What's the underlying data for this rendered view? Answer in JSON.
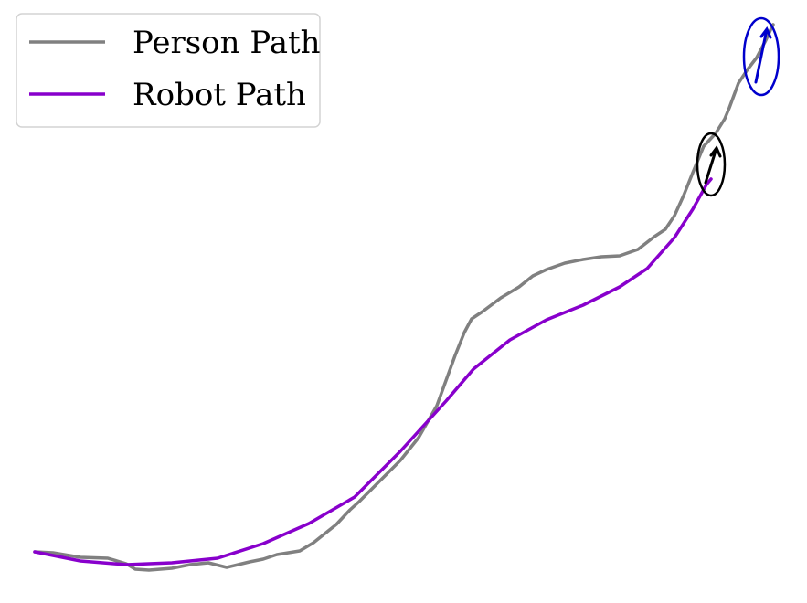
{
  "chart_data": {
    "type": "line",
    "title": "",
    "xlabel": "",
    "ylabel": "",
    "axes_visible": false,
    "grid": false,
    "legend": {
      "placement": "top-left",
      "entries": [
        {
          "label": "Person Path",
          "color": "#808080"
        },
        {
          "label": "Robot Path",
          "color": "#8800cc"
        }
      ]
    },
    "series": [
      {
        "name": "Person Path",
        "color": "#808080",
        "x": [
          0,
          20,
          50,
          80,
          100,
          110,
          125,
          150,
          170,
          190,
          210,
          235,
          250,
          265,
          290,
          305,
          330,
          345,
          355,
          370,
          385,
          400,
          420,
          440,
          460,
          470,
          478,
          490,
          510,
          530,
          545,
          560,
          580,
          600,
          620,
          640,
          660,
          678,
          690,
          700,
          710,
          720,
          732,
          745,
          755,
          760,
          770,
          780,
          790,
          800,
          805,
          808
        ],
        "y": [
          0,
          -1,
          -6,
          -7,
          -13,
          -19,
          -20,
          -18,
          -14,
          -12,
          -17,
          -11,
          -8,
          -3,
          1,
          10,
          30,
          46,
          55,
          70,
          85,
          100,
          125,
          160,
          215,
          240,
          255,
          263,
          278,
          290,
          302,
          309,
          316,
          320,
          323,
          324,
          331,
          345,
          353,
          368,
          390,
          415,
          444,
          458,
          474,
          486,
          513,
          528,
          541,
          560,
          571,
          577
        ]
      },
      {
        "name": "Robot Path",
        "color": "#8800cc",
        "x": [
          0,
          50,
          100,
          150,
          200,
          250,
          300,
          350,
          400,
          450,
          480,
          520,
          560,
          600,
          640,
          670,
          700,
          720,
          735,
          740
        ],
        "y": [
          0,
          -10,
          -14,
          -12,
          -7,
          9,
          31,
          60,
          110,
          165,
          200,
          232,
          254,
          270,
          290,
          310,
          344,
          375,
          402,
          408
        ]
      }
    ],
    "pose_markers": [
      {
        "name": "robot-pose",
        "color": "#000000",
        "x": 740,
        "y": 424
      },
      {
        "name": "person-pose",
        "color": "#0000cc",
        "x": 795,
        "y": 542
      }
    ]
  }
}
